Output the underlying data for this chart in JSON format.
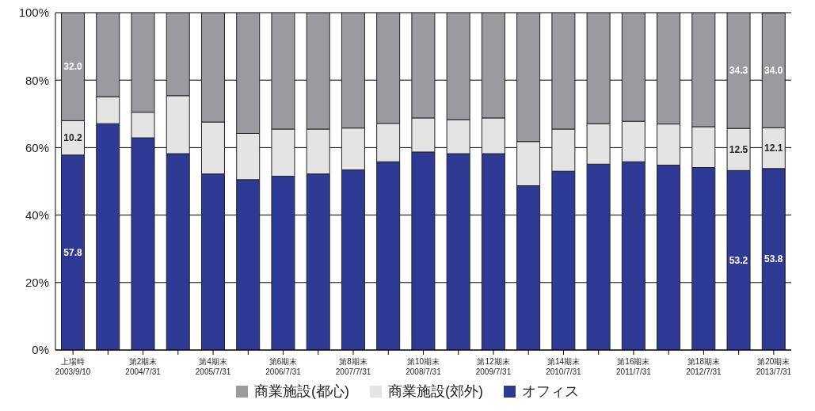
{
  "chart_data": {
    "type": "bar",
    "stacked": true,
    "categories": [
      "上場時\n2003/9/10",
      null,
      "第2期末\n2004/7/31",
      null,
      "第4期末\n2005/7/31",
      null,
      "第6期末\n2006/7/31",
      null,
      "第8期末\n2007/7/31",
      null,
      "第10期末\n2008/7/31",
      null,
      "第12期末\n2009/7/31",
      null,
      "第14期末\n2010/7/31",
      null,
      "第16期末\n2011/7/31",
      null,
      "第18期末\n2012/7/31",
      null,
      "第20期末\n2013/7/31"
    ],
    "series": [
      {
        "name": "オフィス",
        "color": "#2e3a94",
        "values": [
          57.8,
          67.1,
          62.9,
          58.2,
          52.2,
          50.5,
          51.5,
          52.2,
          53.4,
          55.8,
          58.7,
          58.2,
          58.2,
          48.7,
          53.0,
          55.1,
          55.8,
          54.8,
          54.1,
          53.2,
          53.8
        ],
        "value_labels": [
          "57.8",
          null,
          null,
          null,
          null,
          null,
          null,
          null,
          null,
          null,
          null,
          null,
          null,
          null,
          null,
          null,
          null,
          null,
          null,
          "53.2",
          "53.8"
        ]
      },
      {
        "name": "商業施設(郊外)",
        "color": "#e4e4e4",
        "values": [
          10.2,
          8.0,
          7.6,
          17.2,
          15.4,
          13.7,
          14.0,
          13.3,
          12.4,
          11.4,
          10.1,
          10.1,
          10.6,
          13.1,
          12.5,
          12.0,
          12.0,
          12.2,
          12.1,
          12.5,
          12.1
        ],
        "value_labels": [
          "10.2",
          null,
          null,
          null,
          null,
          null,
          null,
          null,
          null,
          null,
          null,
          null,
          null,
          null,
          null,
          null,
          null,
          null,
          null,
          "12.5",
          "12.1"
        ]
      },
      {
        "name": "商業施設(都心)",
        "color": "#9a9b9f",
        "values": [
          32.0,
          24.9,
          29.5,
          24.6,
          32.4,
          35.8,
          34.5,
          34.5,
          34.2,
          32.8,
          31.2,
          31.7,
          31.2,
          38.2,
          34.5,
          32.9,
          32.2,
          33.0,
          33.8,
          34.3,
          34.0
        ],
        "value_labels": [
          "32.0",
          null,
          null,
          null,
          null,
          null,
          null,
          null,
          null,
          null,
          null,
          null,
          null,
          null,
          null,
          null,
          null,
          null,
          null,
          "34.3",
          "34.0"
        ]
      }
    ],
    "ylim": [
      0,
      100
    ],
    "yticks": [
      {
        "value": 0,
        "label": "0%"
      },
      {
        "value": 20,
        "label": "20%"
      },
      {
        "value": 40,
        "label": "40%"
      },
      {
        "value": 60,
        "label": "60%"
      },
      {
        "value": 80,
        "label": "80%"
      },
      {
        "value": 100,
        "label": "100%"
      }
    ],
    "grid": "y",
    "legend": "bottom"
  }
}
